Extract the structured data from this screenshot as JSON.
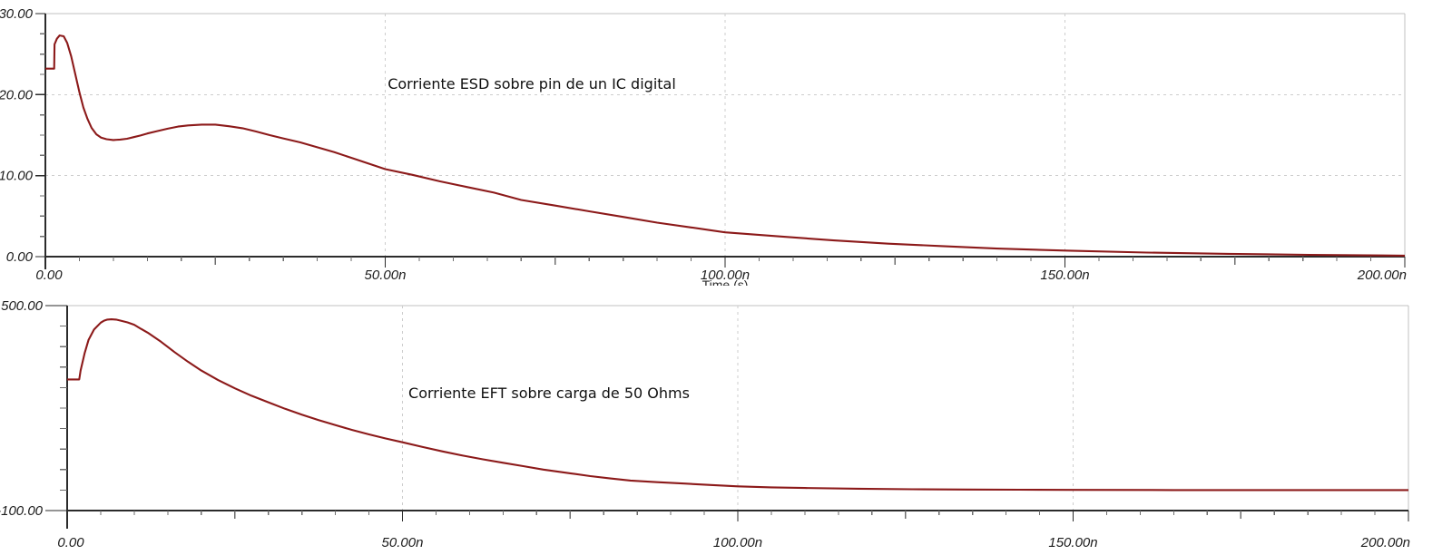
{
  "page": {
    "background": "#ffffff"
  },
  "colors": {
    "curve": "#8c1a1a",
    "axis": "#2b2b2b",
    "major_tick": "#2b2b2b",
    "minor_tick": "#6e6e6e",
    "grid_dashed": "#cdcdcd",
    "frame": "#c2c2c2",
    "tick_label": "#1c1c1c",
    "title": "#101010"
  },
  "chart_data": [
    {
      "type": "line",
      "title": "Corriente ESD sobre pin de un IC digital",
      "xlabel": "Time (s)",
      "ylabel": "",
      "xlim": [
        0,
        200
      ],
      "ylim": [
        0,
        30
      ],
      "x_major_ticks": [
        [
          0,
          "0.00"
        ],
        [
          50,
          "50.00n"
        ],
        [
          100,
          "100.00n"
        ],
        [
          150,
          "150.00n"
        ],
        [
          200,
          "200.00n"
        ]
      ],
      "y_major_ticks": [
        [
          0,
          "0.00"
        ],
        [
          10,
          "10.00"
        ],
        [
          20,
          "20.00"
        ],
        [
          30,
          "30.00"
        ]
      ],
      "x_minor_step": 5,
      "y_minor_step": 2.5,
      "grid": "dashed interior gridlines, solid light top and right frame",
      "legend": "none",
      "series": [
        {
          "color": "#8c1a1a",
          "points": [
            [
              0,
              23.2
            ],
            [
              1.3,
              23.2
            ],
            [
              1.35,
              26.2
            ],
            [
              1.7,
              26.9
            ],
            [
              2.1,
              27.3
            ],
            [
              2.7,
              27.2
            ],
            [
              3.2,
              26.4
            ],
            [
              3.8,
              24.7
            ],
            [
              4.4,
              22.5
            ],
            [
              5,
              20.3
            ],
            [
              5.6,
              18.4
            ],
            [
              6.2,
              17.0
            ],
            [
              6.8,
              15.9
            ],
            [
              7.5,
              15.1
            ],
            [
              8.2,
              14.7
            ],
            [
              9,
              14.5
            ],
            [
              10,
              14.4
            ],
            [
              11,
              14.45
            ],
            [
              12,
              14.55
            ],
            [
              13,
              14.75
            ],
            [
              14,
              14.95
            ],
            [
              15,
              15.2
            ],
            [
              16.5,
              15.5
            ],
            [
              18,
              15.8
            ],
            [
              19.5,
              16.05
            ],
            [
              21,
              16.2
            ],
            [
              23,
              16.3
            ],
            [
              25,
              16.3
            ],
            [
              27,
              16.1
            ],
            [
              29,
              15.85
            ],
            [
              31,
              15.45
            ],
            [
              33,
              15.0
            ],
            [
              35,
              14.6
            ],
            [
              37.5,
              14.1
            ],
            [
              40,
              13.5
            ],
            [
              42.5,
              12.9
            ],
            [
              45,
              12.2
            ],
            [
              47.5,
              11.5
            ],
            [
              50,
              10.8
            ],
            [
              54,
              10.1
            ],
            [
              58,
              9.3
            ],
            [
              62,
              8.6
            ],
            [
              66,
              7.9
            ],
            [
              70,
              7.0
            ],
            [
              75,
              6.3
            ],
            [
              80,
              5.6
            ],
            [
              85,
              4.9
            ],
            [
              90,
              4.2
            ],
            [
              95,
              3.6
            ],
            [
              100,
              3.0
            ],
            [
              108,
              2.5
            ],
            [
              116,
              2.0
            ],
            [
              124,
              1.6
            ],
            [
              132,
              1.3
            ],
            [
              140,
              1.0
            ],
            [
              150,
              0.75
            ],
            [
              162,
              0.5
            ],
            [
              174,
              0.35
            ],
            [
              186,
              0.22
            ],
            [
              200,
              0.12
            ]
          ]
        }
      ]
    },
    {
      "type": "line",
      "title": "Corriente EFT sobre carga de 50 Ohms",
      "xlabel": "",
      "ylabel": "",
      "xlim": [
        0,
        200
      ],
      "ylim": [
        -100,
        500
      ],
      "x_major_ticks": [
        [
          0,
          "0.00"
        ],
        [
          50,
          "50.00n"
        ],
        [
          100,
          "100.00n"
        ],
        [
          150,
          "150.00n"
        ],
        [
          200,
          "200.00n"
        ]
      ],
      "y_major_ticks": [
        [
          -100,
          "-100.00"
        ],
        [
          500,
          "500.00"
        ]
      ],
      "x_minor_step": 5,
      "y_minor_step": 60,
      "grid": "dashed interior vertical gridlines, solid light top and right frame",
      "legend": "none",
      "series": [
        {
          "color": "#8c1a1a",
          "points": [
            [
              0,
              284
            ],
            [
              1.8,
              284
            ],
            [
              2.0,
              310
            ],
            [
              2.6,
              360
            ],
            [
              3.2,
              400
            ],
            [
              4,
              430
            ],
            [
              5,
              450
            ],
            [
              5.5,
              456
            ],
            [
              6,
              459
            ],
            [
              6.6,
              460
            ],
            [
              7.3,
              459
            ],
            [
              8,
              456
            ],
            [
              9,
              451
            ],
            [
              10,
              444
            ],
            [
              11,
              432
            ],
            [
              12,
              421
            ],
            [
              14,
              394
            ],
            [
              16,
              364
            ],
            [
              18,
              336
            ],
            [
              20,
              310
            ],
            [
              22.5,
              282
            ],
            [
              25,
              258
            ],
            [
              27.5,
              236
            ],
            [
              30,
              217
            ],
            [
              32.5,
              198
            ],
            [
              35,
              181
            ],
            [
              37.5,
              165
            ],
            [
              40,
              150
            ],
            [
              42.5,
              136
            ],
            [
              45,
              123
            ],
            [
              47.5,
              111
            ],
            [
              50,
              100
            ],
            [
              53,
              86
            ],
            [
              56,
              73
            ],
            [
              59,
              61
            ],
            [
              62,
              50
            ],
            [
              65,
              40
            ],
            [
              68,
              30
            ],
            [
              71,
              20
            ],
            [
              75,
              9
            ],
            [
              78,
              1
            ],
            [
              81,
              -6
            ],
            [
              84,
              -12
            ],
            [
              88,
              -17
            ],
            [
              92,
              -21
            ],
            [
              96,
              -25
            ],
            [
              100,
              -29
            ],
            [
              105,
              -32
            ],
            [
              110,
              -34
            ],
            [
              118,
              -36
            ],
            [
              126,
              -37.5
            ],
            [
              134,
              -38.5
            ],
            [
              142,
              -39
            ],
            [
              150,
              -39.5
            ],
            [
              165,
              -40
            ],
            [
              200,
              -40
            ]
          ]
        }
      ]
    }
  ]
}
